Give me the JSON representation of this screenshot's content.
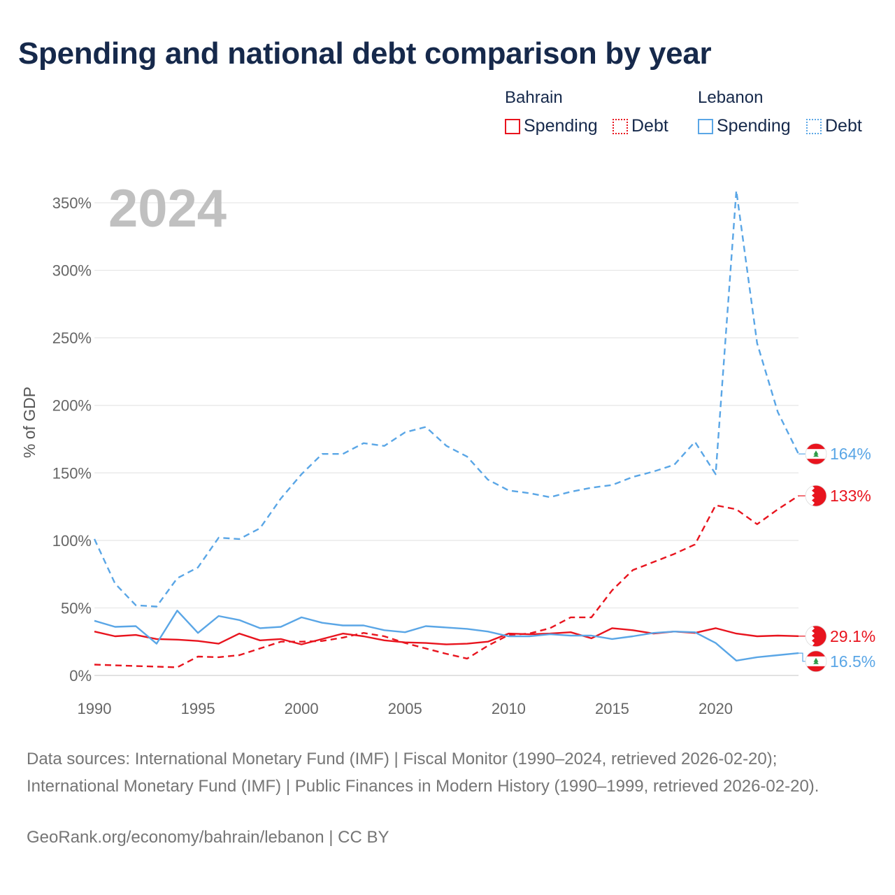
{
  "title": "Spending and national debt comparison by year",
  "legend": {
    "groups": [
      {
        "country": "Bahrain",
        "items": [
          {
            "label": "Spending",
            "style": "solid"
          },
          {
            "label": "Debt",
            "style": "dotted"
          }
        ],
        "color": "#e8141e"
      },
      {
        "country": "Lebanon",
        "items": [
          {
            "label": "Spending",
            "style": "solid"
          },
          {
            "label": "Debt",
            "style": "dotted"
          }
        ],
        "color": "#5aa6e6"
      }
    ]
  },
  "year_watermark": "2024",
  "chart_data": {
    "type": "line",
    "title": "Spending and national debt comparison by year",
    "xlabel": "",
    "ylabel": "% of GDP",
    "xlim": [
      1990,
      2024
    ],
    "ylim": [
      0,
      350
    ],
    "x_ticks": [
      1990,
      1995,
      2000,
      2005,
      2010,
      2015,
      2020
    ],
    "y_ticks": [
      0,
      50,
      100,
      150,
      200,
      250,
      300,
      350
    ],
    "y_tick_labels": [
      "0%",
      "50%",
      "100%",
      "150%",
      "200%",
      "250%",
      "300%",
      "350%"
    ],
    "grid": true,
    "x": [
      1990,
      1991,
      1992,
      1993,
      1994,
      1995,
      1996,
      1997,
      1998,
      1999,
      2000,
      2001,
      2002,
      2003,
      2004,
      2005,
      2006,
      2007,
      2008,
      2009,
      2010,
      2011,
      2012,
      2013,
      2014,
      2015,
      2016,
      2017,
      2018,
      2019,
      2020,
      2021,
      2022,
      2023,
      2024
    ],
    "series": [
      {
        "name": "Lebanon Debt",
        "country": "Lebanon",
        "measure": "Debt",
        "color": "#5aa6e6",
        "dash": "dashed",
        "values": [
          101,
          68,
          52,
          51,
          72,
          80,
          102,
          101,
          109,
          131,
          149,
          164,
          164,
          172,
          170,
          180,
          184,
          170,
          162,
          145,
          137,
          135,
          132,
          136,
          139,
          141,
          147,
          151,
          156,
          173,
          149,
          359,
          246,
          195,
          164
        ],
        "end_label": "164%",
        "flag": "Lebanon"
      },
      {
        "name": "Bahrain Debt",
        "country": "Bahrain",
        "measure": "Debt",
        "color": "#e8141e",
        "dash": "dashed",
        "values": [
          8,
          7.5,
          7,
          6.5,
          6,
          14,
          13.5,
          15,
          20,
          25,
          25,
          25.5,
          28,
          31.5,
          29,
          24,
          20,
          16,
          12.5,
          22,
          30,
          31,
          35,
          43,
          43,
          63,
          78,
          84,
          90,
          97,
          126,
          123,
          112,
          123,
          133
        ],
        "end_label": "133%",
        "flag": "Bahrain"
      },
      {
        "name": "Bahrain Spending",
        "country": "Bahrain",
        "measure": "Spending",
        "color": "#e8141e",
        "dash": "solid",
        "values": [
          32.5,
          29,
          30,
          27,
          26.5,
          25.5,
          23.5,
          31,
          26,
          27,
          23,
          27,
          31,
          29,
          26,
          24.5,
          24,
          23,
          23.5,
          25,
          31,
          30.5,
          31,
          32,
          27.5,
          35,
          33.5,
          31,
          32.5,
          31.5,
          35,
          31,
          29,
          29.5,
          29.1
        ],
        "end_label": "29.1%",
        "flag": "Bahrain"
      },
      {
        "name": "Lebanon Spending",
        "country": "Lebanon",
        "measure": "Spending",
        "color": "#5aa6e6",
        "dash": "solid",
        "values": [
          40.5,
          36,
          36.5,
          23.5,
          48,
          31.5,
          44,
          41,
          35,
          36,
          43,
          39,
          37,
          37,
          33.5,
          32,
          36.5,
          35.5,
          34.5,
          32.5,
          29,
          29,
          30.5,
          29.5,
          29.5,
          27,
          29,
          31.5,
          32.5,
          32,
          24,
          11,
          13.5,
          15,
          16.5
        ],
        "end_label": "16.5%",
        "flag": "Lebanon"
      }
    ]
  },
  "sources": "Data sources: International Monetary Fund (IMF) | Fiscal Monitor (1990–2024, retrieved 2026-02-20); International Monetary Fund (IMF) | Public Finances in Modern History (1990–1999, retrieved 2026-02-20).",
  "credit": "GeoRank.org/economy/bahrain/lebanon | CC BY"
}
